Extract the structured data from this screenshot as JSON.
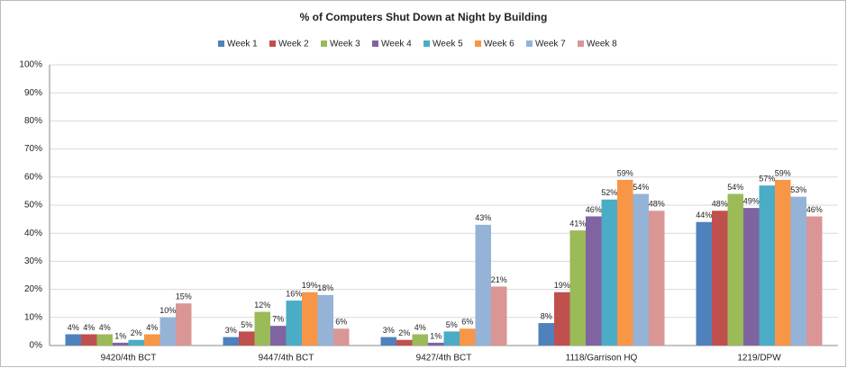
{
  "chart_data": {
    "type": "bar",
    "title": "% of Computers Shut Down at Night by Building",
    "categories": [
      "9420/4th BCT",
      "9447/4th BCT",
      "9427/4th BCT",
      "1118/Garrison HQ",
      "1219/DPW"
    ],
    "series": [
      {
        "name": "Week 1",
        "color": "#4f81bd",
        "values": [
          4,
          3,
          3,
          8,
          44
        ],
        "value_labels": [
          "4%",
          "3%",
          "3%",
          "8%",
          "44%"
        ]
      },
      {
        "name": "Week 2",
        "color": "#c0504d",
        "values": [
          4,
          5,
          2,
          19,
          48
        ],
        "value_labels": [
          "4%",
          "5%",
          "2%",
          "19%",
          "48%"
        ]
      },
      {
        "name": "Week 3",
        "color": "#9bbb59",
        "values": [
          4,
          12,
          4,
          41,
          54
        ],
        "value_labels": [
          "4%",
          "12%",
          "4%",
          "41%",
          "54%"
        ]
      },
      {
        "name": "Week 4",
        "color": "#8064a2",
        "values": [
          1,
          7,
          1,
          46,
          49
        ],
        "value_labels": [
          "1%",
          "7%",
          "1%",
          "46%",
          "49%"
        ]
      },
      {
        "name": "Week 5",
        "color": "#4bacc6",
        "values": [
          2,
          16,
          5,
          52,
          57
        ],
        "value_labels": [
          "2%",
          "16%",
          "5%",
          "52%",
          "57%"
        ]
      },
      {
        "name": "Week 6",
        "color": "#f79646",
        "values": [
          4,
          19,
          6,
          59,
          59
        ],
        "value_labels": [
          "4%",
          "19%",
          "6%",
          "59%",
          "59%"
        ]
      },
      {
        "name": "Week 7",
        "color": "#95b3d7",
        "values": [
          10,
          18,
          43,
          54,
          53
        ],
        "value_labels": [
          "10%",
          "18%",
          "43%",
          "54%",
          "53%"
        ]
      },
      {
        "name": "Week 8",
        "color": "#d99694",
        "values": [
          15,
          6,
          21,
          48,
          46
        ],
        "value_labels": [
          "15%",
          "6%",
          "21%",
          "48%",
          "46%"
        ]
      }
    ],
    "ylim": [
      0,
      100
    ],
    "yticks": [
      {
        "value": 0,
        "label": "0%"
      },
      {
        "value": 10,
        "label": "10%"
      },
      {
        "value": 20,
        "label": "20%"
      },
      {
        "value": 30,
        "label": "30%"
      },
      {
        "value": 40,
        "label": "40%"
      },
      {
        "value": 50,
        "label": "50%"
      },
      {
        "value": 60,
        "label": "60%"
      },
      {
        "value": 70,
        "label": "70%"
      },
      {
        "value": 80,
        "label": "80%"
      },
      {
        "value": 90,
        "label": "90%"
      },
      {
        "value": 100,
        "label": "100%"
      }
    ],
    "grid": true
  }
}
